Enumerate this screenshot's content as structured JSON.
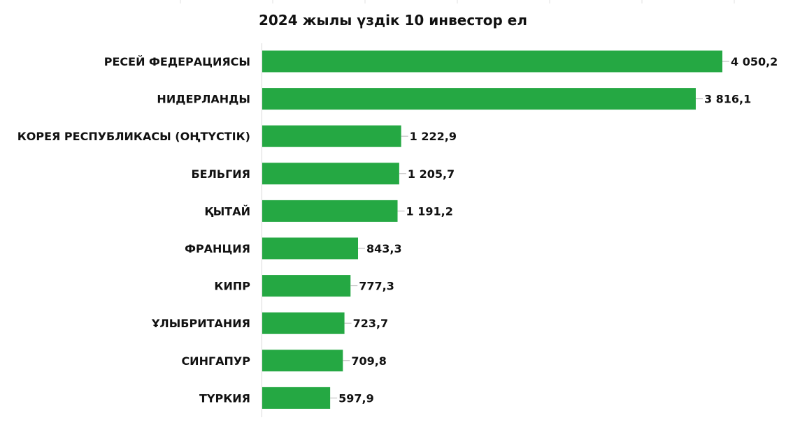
{
  "chart_data": {
    "type": "bar",
    "orientation": "horizontal",
    "title": "2024 жылы үздік 10 инвестор ел",
    "categories": [
      "РЕСЕЙ ФЕДЕРАЦИЯСЫ",
      "НИДЕРЛАНДЫ",
      "КОРЕЯ РЕСПУБЛИКАСЫ (ОҢТҮСТІК)",
      "БЕЛЬГИЯ",
      "ҚЫТАЙ",
      "ФРАНЦИЯ",
      "КИПР",
      "ҰЛЫБРИТАНИЯ",
      "СИНГАПУР",
      "ТҮРКИЯ"
    ],
    "values": [
      4050.2,
      3816.1,
      1222.9,
      1205.7,
      1191.2,
      843.3,
      777.3,
      723.7,
      709.8,
      597.9
    ],
    "value_labels": [
      "4 050,2",
      "3 816,1",
      "1 222,9",
      "1 205,7",
      "1 191,2",
      "843,3",
      "777,3",
      "723,7",
      "709,8",
      "597,9"
    ],
    "bar_color": "#25a843",
    "xlim": [
      0,
      4050.2
    ],
    "grid": false,
    "legend": "none"
  }
}
